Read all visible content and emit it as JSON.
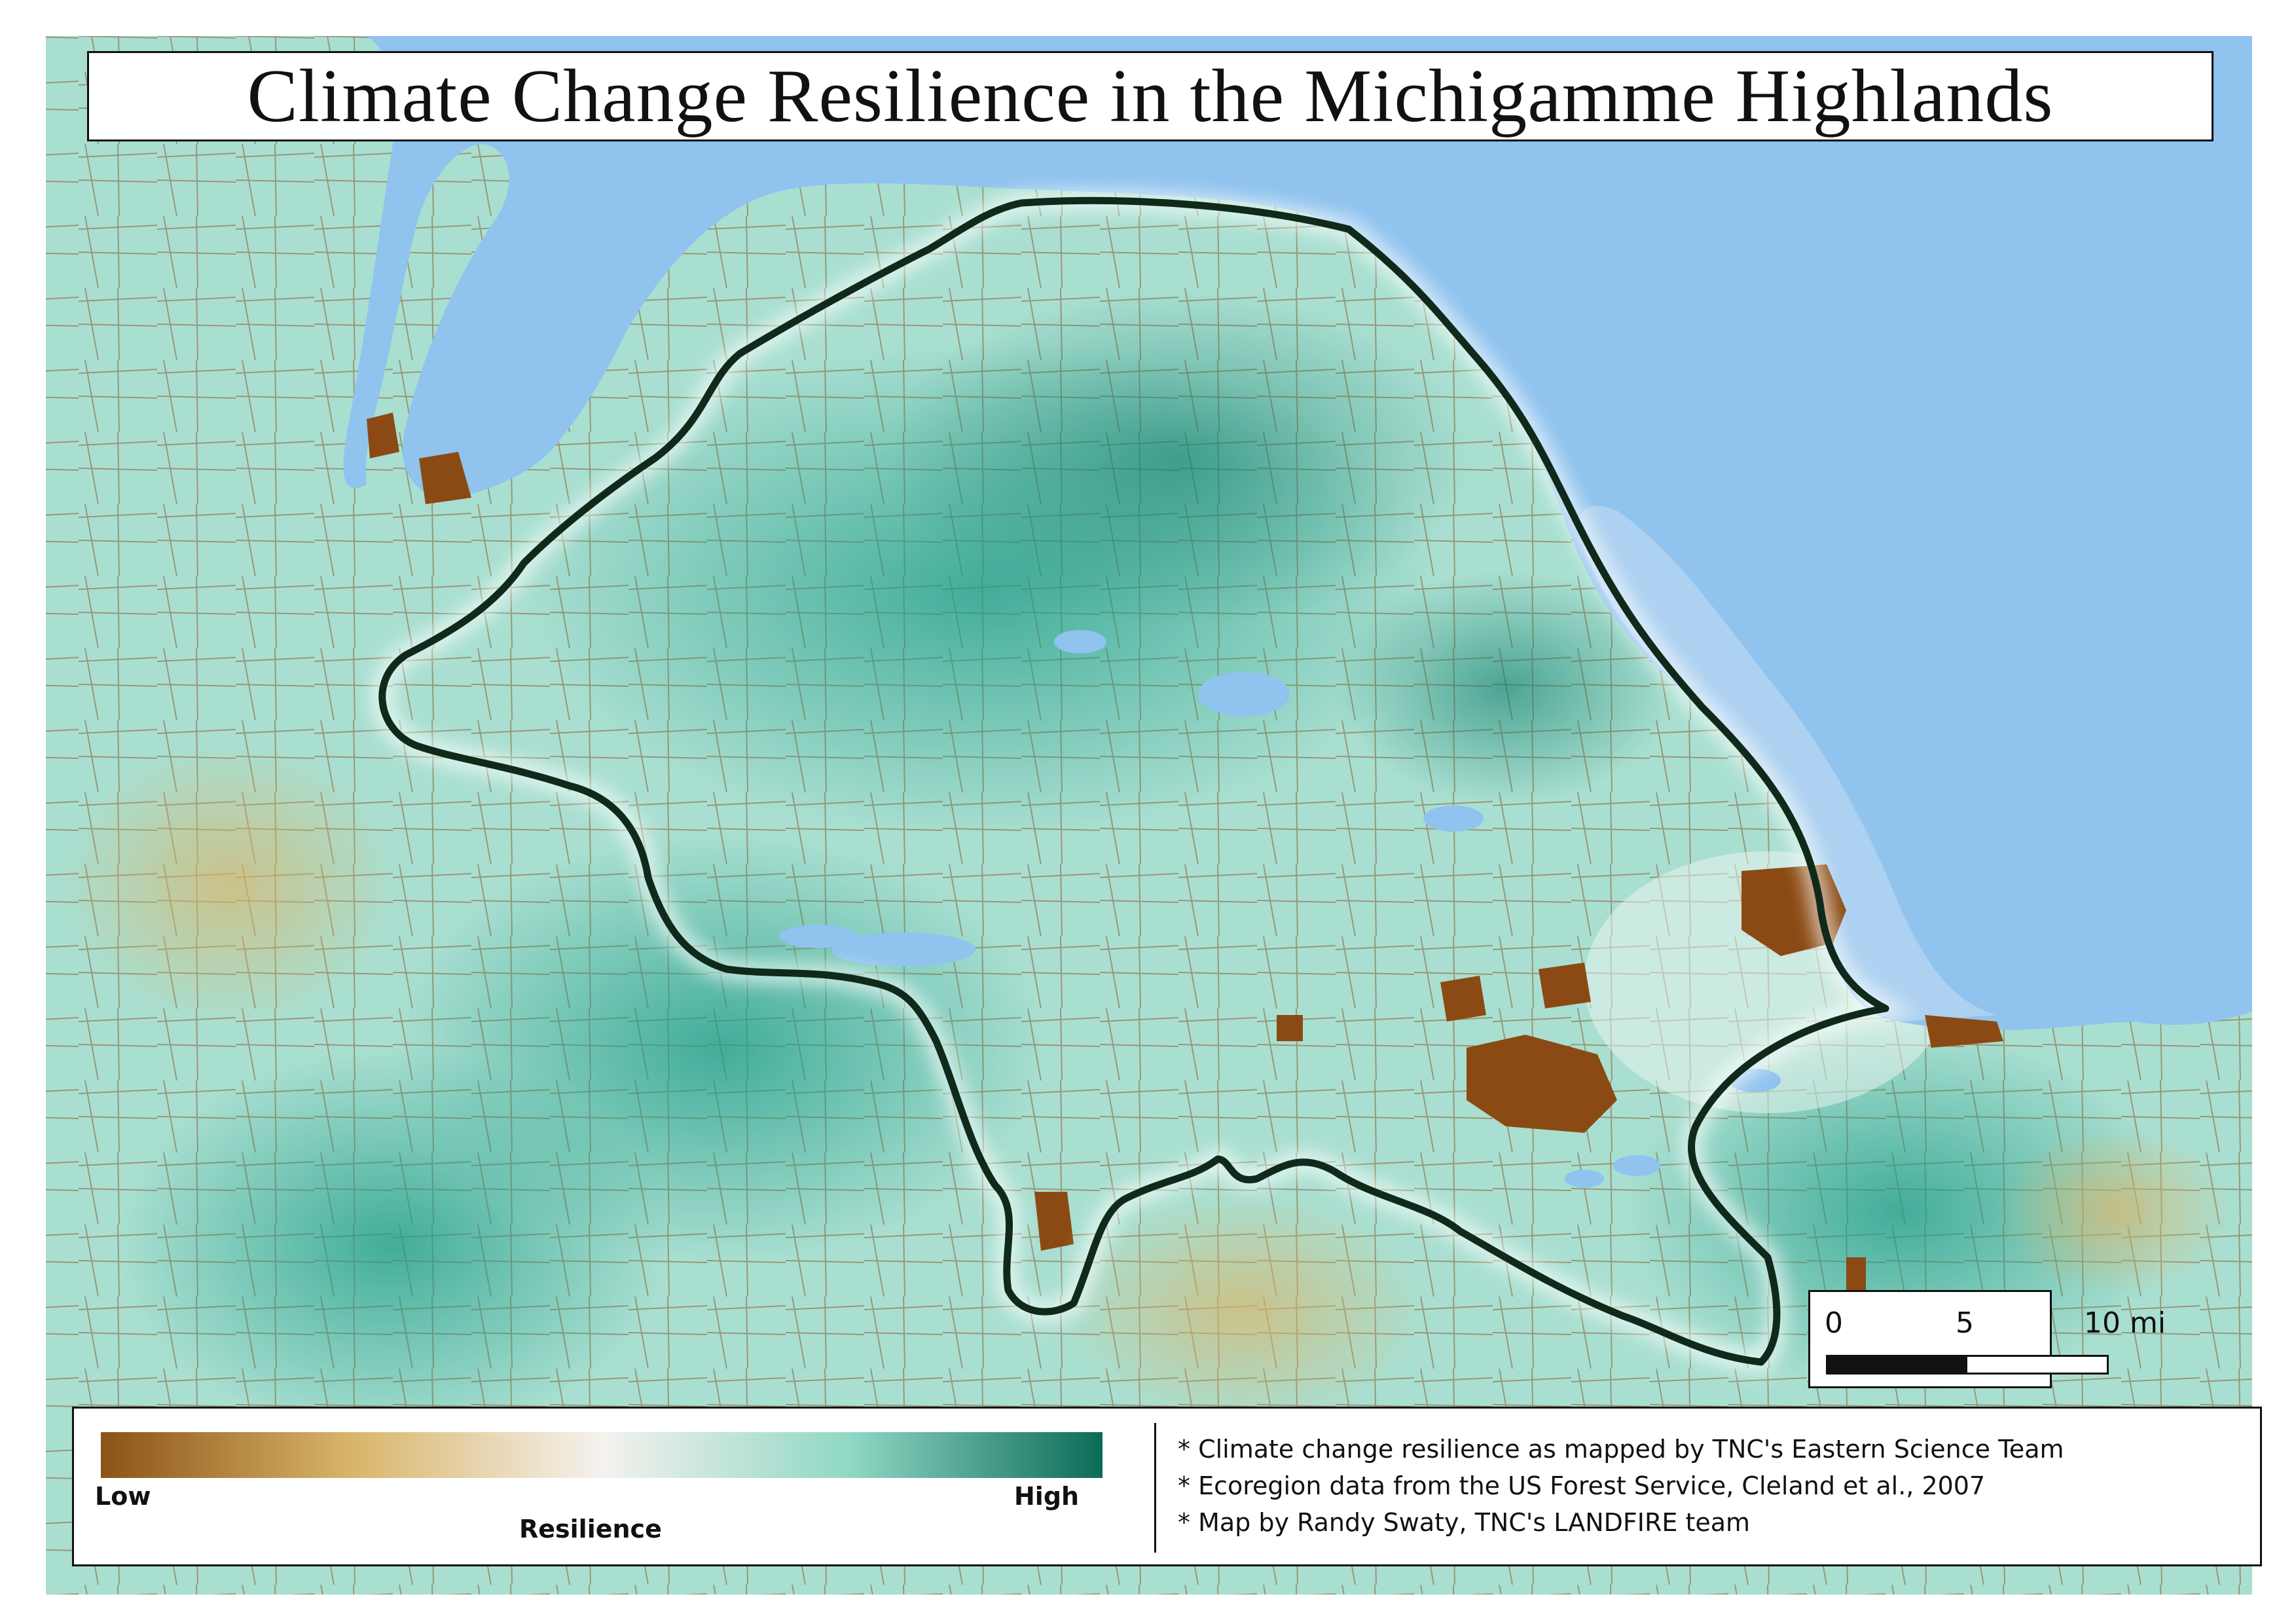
{
  "title": "Climate Change Resilience in the Michigamme Highlands",
  "colors": {
    "lake": "#90c3ee",
    "lake_shallow": "#b4d4f0",
    "land_high": "#1f9c87",
    "land_mid": "#7fd3c1",
    "land_low": "#d9b56a",
    "urban": "#8b4a13",
    "roads": "#8b5a2b",
    "ecoregion_outline": "#0f2a1a"
  },
  "scale_bar": {
    "labels": [
      "0",
      "5",
      "10 mi"
    ]
  },
  "legend": {
    "gradient_colors": [
      "#8b5316",
      "#d9b56a",
      "#f4f2ee",
      "#8fd7c4",
      "#0b6b57"
    ],
    "low_label": "Low",
    "high_label": "High",
    "caption": "Resilience"
  },
  "notes": [
    "* Climate change resilience as mapped by TNC's Eastern Science Team",
    "* Ecoregion data from the US Forest Service, Cleland et al., 2007",
    "* Map by Randy Swaty, TNC's LANDFIRE team"
  ]
}
